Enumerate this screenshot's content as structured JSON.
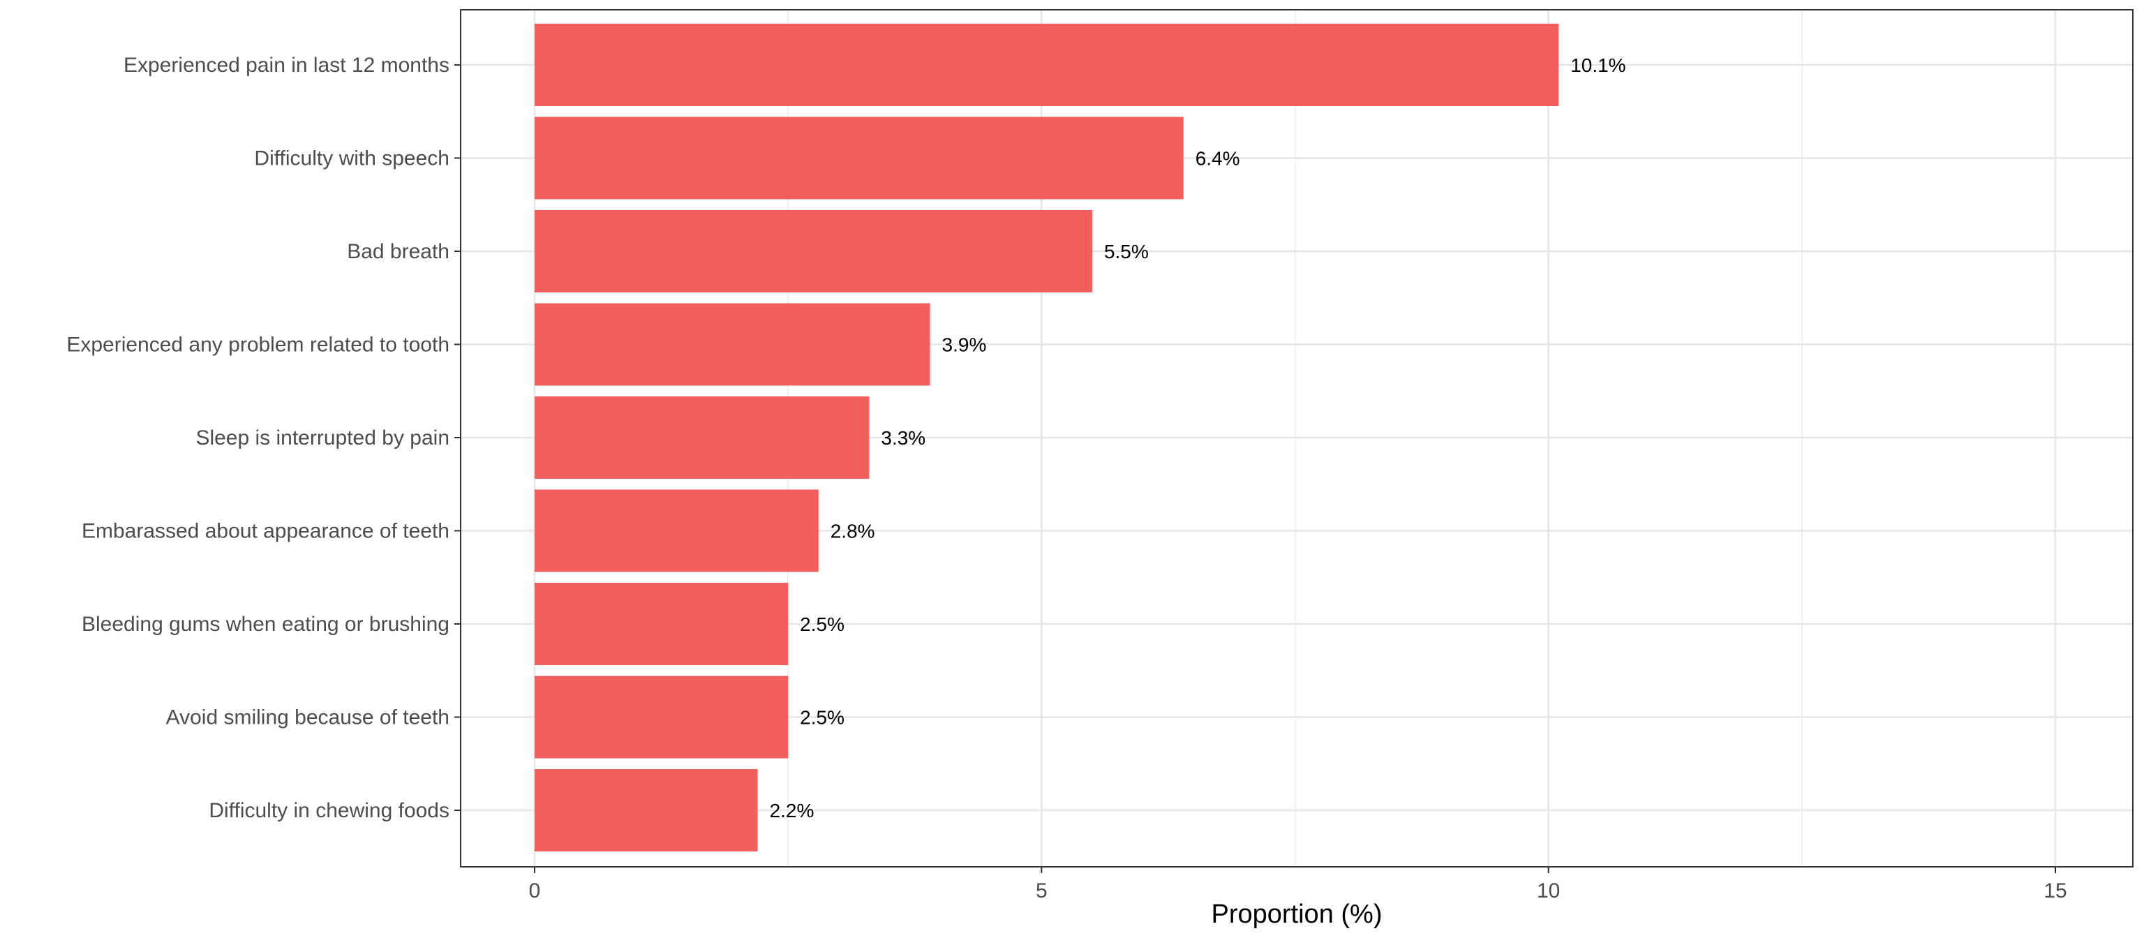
{
  "colors": {
    "bar": "#f35f5c",
    "panel_border": "#333333",
    "grid_major": "#e5e5e5",
    "grid_minor": "#f0f0f0",
    "tick": "#333333"
  },
  "chart_data": {
    "type": "bar",
    "orientation": "horizontal",
    "title": "",
    "xlabel": "Proportion (%)",
    "ylabel": "",
    "xlim": [
      0,
      15
    ],
    "xticks": [
      0,
      5,
      10,
      15
    ],
    "grid": true,
    "legend": "none",
    "categories": [
      "Experienced pain in last 12 months",
      "Difficulty with speech",
      "Bad breath",
      "Experienced any problem related to tooth",
      "Sleep is interrupted by pain",
      "Embarassed about appearance of teeth",
      "Bleeding gums when eating or brushing",
      "Avoid smiling because of teeth",
      "Difficulty in chewing foods"
    ],
    "values": [
      10.1,
      6.4,
      5.5,
      3.9,
      3.3,
      2.8,
      2.5,
      2.5,
      2.2
    ],
    "data_labels": [
      "10.1%",
      "6.4%",
      "5.5%",
      "3.9%",
      "3.3%",
      "2.8%",
      "2.5%",
      "2.5%",
      "2.2%"
    ]
  }
}
